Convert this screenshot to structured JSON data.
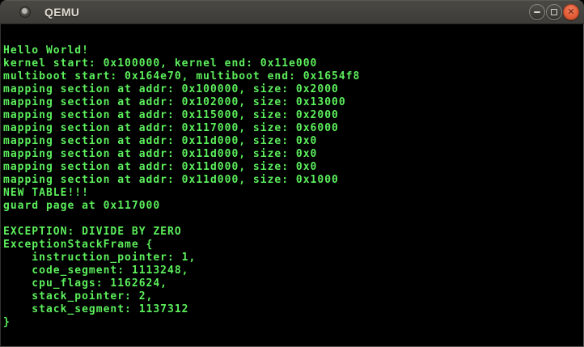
{
  "window": {
    "title": "QEMU",
    "controls": {
      "minimize_label": "minimize",
      "maximize_label": "maximize",
      "close_label": "close"
    }
  },
  "icons": {
    "window_icon": "app-dot",
    "minimize_icon": "−",
    "maximize_icon": "□",
    "close_icon": "✕"
  },
  "terminal": {
    "lines": [
      "Hello World!",
      "kernel start: 0x100000, kernel end: 0x11e000",
      "multiboot start: 0x164e70, multiboot end: 0x1654f8",
      "mapping section at addr: 0x100000, size: 0x2000",
      "mapping section at addr: 0x102000, size: 0x13000",
      "mapping section at addr: 0x115000, size: 0x2000",
      "mapping section at addr: 0x117000, size: 0x6000",
      "mapping section at addr: 0x11d000, size: 0x0",
      "mapping section at addr: 0x11d000, size: 0x0",
      "mapping section at addr: 0x11d000, size: 0x0",
      "mapping section at addr: 0x11d000, size: 0x1000",
      "NEW TABLE!!!",
      "guard page at 0x117000",
      "",
      "EXCEPTION: DIVIDE BY ZERO",
      "ExceptionStackFrame {",
      "    instruction_pointer: 1,",
      "    code_segment: 1113248,",
      "    cpu_flags: 1162624,",
      "    stack_pointer: 2,",
      "    stack_segment: 1137312",
      "}"
    ]
  },
  "colors": {
    "text_green": "#5cef5c",
    "terminal_bg": "#000000",
    "titlebar_bg": "#3d3c38",
    "titlebar_top": "#4a4944",
    "close_button": "#e25b35"
  }
}
